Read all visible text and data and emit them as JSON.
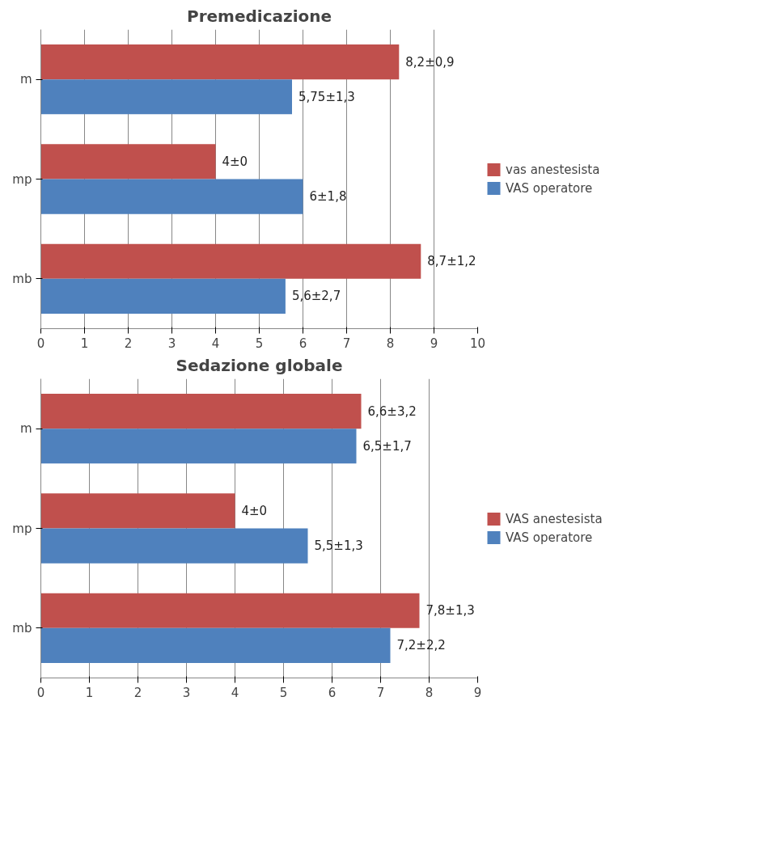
{
  "chart_data": [
    {
      "type": "bar",
      "orientation": "horizontal",
      "title": "Premedicazione",
      "categories": [
        "m",
        "mp",
        "mb"
      ],
      "series": [
        {
          "name": "vas anestesista",
          "color": "#c0504d",
          "values": [
            8.2,
            4,
            8.7
          ],
          "value_labels": [
            "8,2±0,9",
            "4±0",
            "8,7±1,2"
          ]
        },
        {
          "name": "VAS operatore",
          "color": "#4f81bd",
          "values": [
            5.75,
            6,
            5.6
          ],
          "value_labels": [
            "5,75±1,3",
            "6±1,8",
            "5,6±2,7"
          ]
        }
      ],
      "xlim": [
        0,
        10
      ],
      "xticks": [
        0,
        1,
        2,
        3,
        4,
        5,
        6,
        7,
        8,
        9,
        10
      ],
      "grid": "x",
      "legend": "right"
    },
    {
      "type": "bar",
      "orientation": "horizontal",
      "title": "Sedazione globale",
      "categories": [
        "m",
        "mp",
        "mb"
      ],
      "series": [
        {
          "name": "VAS anestesista",
          "color": "#c0504d",
          "values": [
            6.6,
            4,
            7.8
          ],
          "value_labels": [
            "6,6±3,2",
            "4±0",
            "7,8±1,3"
          ]
        },
        {
          "name": "VAS operatore",
          "color": "#4f81bd",
          "values": [
            6.5,
            5.5,
            7.2
          ],
          "value_labels": [
            "6,5±1,7",
            "5,5±1,3",
            "7,2±2,2"
          ]
        }
      ],
      "xlim": [
        0,
        9
      ],
      "xticks": [
        0,
        1,
        2,
        3,
        4,
        5,
        6,
        7,
        8,
        9
      ],
      "grid": "x",
      "legend": "right"
    }
  ]
}
